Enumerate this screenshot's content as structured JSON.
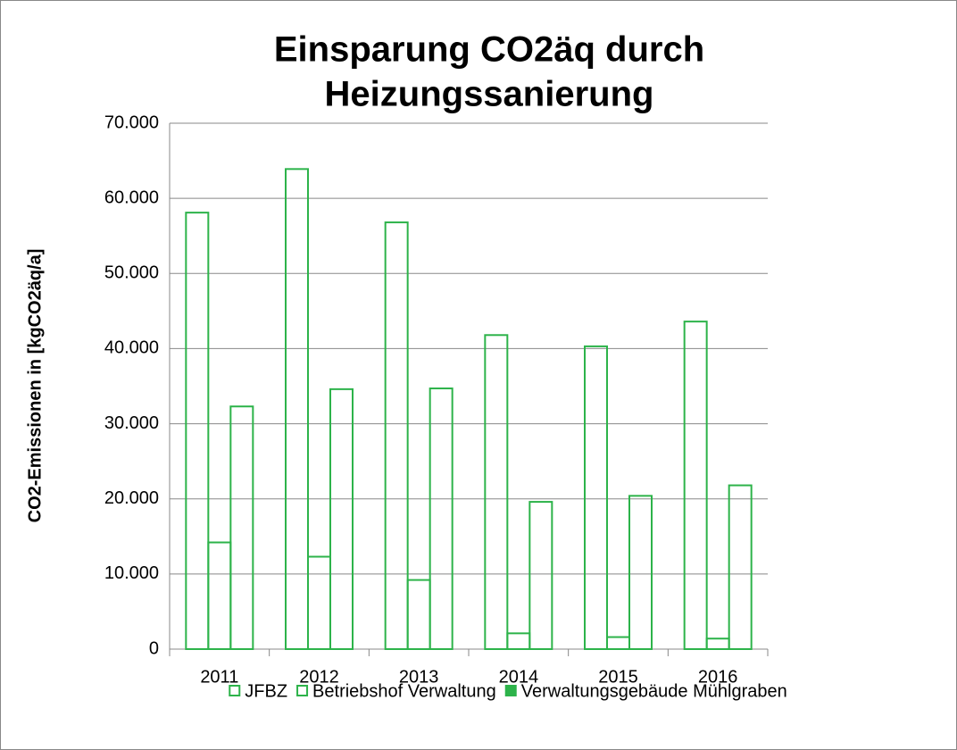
{
  "chart_data": {
    "type": "bar",
    "title": [
      "Einsparung CO2äq durch",
      "Heizungssanierung"
    ],
    "y_label": "CO2-Emissionen in [kgCO2äq/a]",
    "categories": [
      "2011",
      "2012",
      "2013",
      "2014",
      "2015",
      "2016"
    ],
    "series": [
      {
        "name": "JFBZ",
        "color": "#2db34a",
        "values": [
          58100,
          63900,
          56800,
          41800,
          40300,
          43600
        ]
      },
      {
        "name": "Betriebshof Verwaltung",
        "color": "#2db34a",
        "values": [
          14200,
          12300,
          9200,
          2100,
          1600,
          1400
        ]
      },
      {
        "name": "Verwaltungsgebäude Mühlgraben",
        "color": "#2db34a",
        "values": [
          32300,
          34600,
          34700,
          19600,
          20400,
          21800
        ]
      }
    ],
    "ylim": [
      0,
      70000
    ],
    "yticks": [
      0,
      {
        "value": 10000,
        "label": "10.000"
      },
      {
        "value": 20000,
        "label": "20.000"
      },
      {
        "value": 30000,
        "label": "30.000"
      },
      {
        "value": 40000,
        "label": "40.000"
      },
      {
        "value": 50000,
        "label": "50.000"
      },
      {
        "value": 60000,
        "label": "60.000"
      },
      {
        "value": 70000,
        "label": "70.000"
      }
    ],
    "grid": true,
    "legend": "bottom"
  }
}
